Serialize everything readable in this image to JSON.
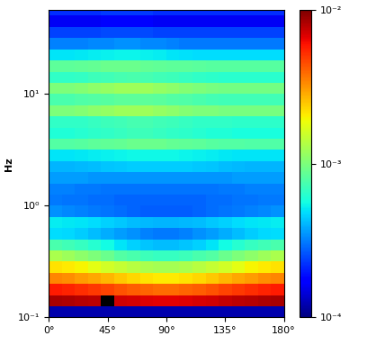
{
  "chart_data": {
    "type": "heatmap",
    "y_label": "Hz",
    "log": "y",
    "x_edges": [
      0,
      10,
      20,
      30,
      40,
      50,
      60,
      70,
      80,
      90,
      100,
      110,
      120,
      130,
      140,
      150,
      160,
      170,
      180
    ],
    "y_edges": [
      0.1,
      0.126,
      0.158,
      0.2,
      0.251,
      0.316,
      0.398,
      0.501,
      0.631,
      0.794,
      1,
      1.26,
      1.58,
      2,
      2.51,
      3.16,
      3.98,
      5.01,
      6.31,
      7.94,
      10,
      12.6,
      15.8,
      20,
      25.1,
      31.6,
      39.8,
      50.1,
      63.1
    ],
    "xlim": [
      0,
      180
    ],
    "ylim": [
      0.1,
      56
    ],
    "xticks": [
      {
        "value": 0,
        "label": "0°"
      },
      {
        "value": 45,
        "label": "45°"
      },
      {
        "value": 90,
        "label": "90°"
      },
      {
        "value": 135,
        "label": "135°"
      },
      {
        "value": 180,
        "label": "180°"
      }
    ],
    "yticks": [
      {
        "value": 0.1,
        "label": "10⁻¹"
      },
      {
        "value": 1,
        "label": "10⁰"
      },
      {
        "value": 10,
        "label": "10¹"
      }
    ],
    "colorbar_range": [
      0.0001,
      0.01
    ],
    "colorbar_ticks": [
      {
        "value": 0.0001,
        "label": "10⁻⁴"
      },
      {
        "value": 0.001,
        "label": "10⁻³"
      },
      {
        "value": 0.01,
        "label": "10⁻²"
      }
    ],
    "cells": [
      [
        0.00012,
        0.00012,
        0.00012,
        0.00012,
        0.00012,
        0.00012,
        0.00012,
        0.00012,
        0.00012,
        0.00012,
        0.00012,
        0.00012,
        0.00012,
        0.00012,
        0.00012,
        0.00012,
        0.00012,
        0.00012
      ],
      [
        0.0085,
        0.0083,
        0.008,
        0.0078,
        0.02,
        0.0072,
        0.007,
        0.0068,
        0.0067,
        0.0067,
        0.0068,
        0.007,
        0.0072,
        0.0075,
        0.0078,
        0.008,
        0.0083,
        0.0085
      ],
      [
        0.0058,
        0.0056,
        0.0053,
        0.005,
        0.0047,
        0.0044,
        0.0042,
        0.004,
        0.0039,
        0.0039,
        0.004,
        0.0042,
        0.0044,
        0.0047,
        0.005,
        0.0053,
        0.0056,
        0.0058
      ],
      [
        0.0034,
        0.0033,
        0.0031,
        0.0029,
        0.0027,
        0.0025,
        0.0023,
        0.0022,
        0.0021,
        0.0021,
        0.0022,
        0.0023,
        0.0025,
        0.0027,
        0.0029,
        0.0031,
        0.0033,
        0.0034
      ],
      [
        0.0022,
        0.0021,
        0.002,
        0.0018,
        0.0016,
        0.0015,
        0.0014,
        0.0013,
        0.00125,
        0.00125,
        0.0013,
        0.0014,
        0.0015,
        0.0016,
        0.0018,
        0.002,
        0.0021,
        0.0022
      ],
      [
        0.0013,
        0.0012,
        0.0011,
        0.001,
        0.0009,
        0.0008,
        0.00075,
        0.0007,
        0.00068,
        0.00068,
        0.0007,
        0.00075,
        0.0008,
        0.0009,
        0.001,
        0.0011,
        0.0012,
        0.0013
      ],
      [
        0.00075,
        0.00072,
        0.00068,
        0.00062,
        0.00056,
        0.0005,
        0.00046,
        0.00043,
        0.00042,
        0.00042,
        0.00043,
        0.00046,
        0.0005,
        0.00056,
        0.00062,
        0.00068,
        0.00072,
        0.00075
      ],
      [
        0.00048,
        0.00047,
        0.00045,
        0.00042,
        0.00039,
        0.00036,
        0.00034,
        0.00032,
        0.00031,
        0.00031,
        0.00032,
        0.00034,
        0.00036,
        0.00039,
        0.00042,
        0.00045,
        0.00047,
        0.00048
      ],
      [
        0.00052,
        0.00051,
        0.0005,
        0.00048,
        0.00046,
        0.00044,
        0.00042,
        0.00041,
        0.0004,
        0.0004,
        0.00041,
        0.00042,
        0.00044,
        0.00046,
        0.00048,
        0.0005,
        0.00051,
        0.00052
      ],
      [
        0.00034,
        0.00033,
        0.00032,
        0.00031,
        0.0003,
        0.00029,
        0.00028,
        0.00027,
        0.00027,
        0.00027,
        0.00027,
        0.00028,
        0.00029,
        0.0003,
        0.00031,
        0.00032,
        0.00033,
        0.00034
      ],
      [
        0.00031,
        0.0003,
        0.0003,
        0.00029,
        0.00029,
        0.00028,
        0.00028,
        0.00028,
        0.00028,
        0.00028,
        0.00028,
        0.00028,
        0.00029,
        0.00029,
        0.0003,
        0.0003,
        0.00031,
        0.00031
      ],
      [
        0.00032,
        0.00032,
        0.00031,
        0.00031,
        0.0003,
        0.0003,
        0.0003,
        0.0003,
        0.0003,
        0.0003,
        0.0003,
        0.0003,
        0.0003,
        0.00031,
        0.00031,
        0.00032,
        0.00032,
        0.00032
      ],
      [
        0.00036,
        0.00036,
        0.00036,
        0.00035,
        0.00035,
        0.00035,
        0.00035,
        0.00035,
        0.00035,
        0.00035,
        0.00035,
        0.00035,
        0.00035,
        0.00035,
        0.00036,
        0.00036,
        0.00036,
        0.00036
      ],
      [
        0.0004,
        0.0004,
        0.00041,
        0.00042,
        0.00043,
        0.00044,
        0.00045,
        0.00045,
        0.00045,
        0.00045,
        0.00045,
        0.00044,
        0.00043,
        0.00042,
        0.00041,
        0.0004,
        0.0004,
        0.0004
      ],
      [
        0.0005,
        0.0005,
        0.00051,
        0.00052,
        0.00053,
        0.00054,
        0.00055,
        0.00055,
        0.00055,
        0.00055,
        0.00054,
        0.00053,
        0.00052,
        0.00051,
        0.0005,
        0.0005,
        0.0005,
        0.0005
      ],
      [
        0.0008,
        0.0008,
        0.00082,
        0.00084,
        0.00086,
        0.00088,
        0.0009,
        0.0009,
        0.0009,
        0.00088,
        0.00086,
        0.00084,
        0.00082,
        0.0008,
        0.0008,
        0.00078,
        0.00078,
        0.00078
      ],
      [
        0.0006,
        0.0006,
        0.00062,
        0.00064,
        0.00066,
        0.00068,
        0.0007,
        0.0007,
        0.00068,
        0.00066,
        0.00064,
        0.00062,
        0.0006,
        0.0006,
        0.00058,
        0.00058,
        0.00058,
        0.00058
      ],
      [
        0.00065,
        0.00065,
        0.00066,
        0.00068,
        0.0007,
        0.00072,
        0.00074,
        0.00074,
        0.00072,
        0.0007,
        0.00068,
        0.00066,
        0.00065,
        0.00065,
        0.00064,
        0.00064,
        0.00064,
        0.00064
      ],
      [
        0.001,
        0.001,
        0.00105,
        0.0011,
        0.00115,
        0.0012,
        0.0012,
        0.0012,
        0.00115,
        0.0011,
        0.00105,
        0.001,
        0.001,
        0.00098,
        0.00098,
        0.00098,
        0.00098,
        0.00098
      ],
      [
        0.00075,
        0.00075,
        0.00078,
        0.0008,
        0.00082,
        0.00084,
        0.00085,
        0.00085,
        0.00083,
        0.0008,
        0.00078,
        0.00075,
        0.00073,
        0.00072,
        0.00072,
        0.00072,
        0.00072,
        0.00072
      ],
      [
        0.001,
        0.001,
        0.00105,
        0.0011,
        0.00115,
        0.0012,
        0.0012,
        0.0012,
        0.00115,
        0.0011,
        0.00105,
        0.001,
        0.00098,
        0.00096,
        0.00096,
        0.00096,
        0.00096,
        0.00096
      ],
      [
        0.00065,
        0.00065,
        0.00067,
        0.0007,
        0.00072,
        0.00074,
        0.00075,
        0.00074,
        0.00072,
        0.0007,
        0.00068,
        0.00066,
        0.00064,
        0.00063,
        0.00063,
        0.00063,
        0.00063,
        0.00063
      ],
      [
        0.00085,
        0.00085,
        0.00086,
        0.00088,
        0.0009,
        0.0009,
        0.0009,
        0.00088,
        0.00086,
        0.00085,
        0.00084,
        0.00083,
        0.00082,
        0.00082,
        0.00082,
        0.00082,
        0.00082,
        0.00082
      ],
      [
        0.0005,
        0.0005,
        0.00051,
        0.00052,
        0.00053,
        0.00054,
        0.00054,
        0.00053,
        0.00052,
        0.0005,
        0.00049,
        0.00048,
        0.00048,
        0.00048,
        0.00048,
        0.00048,
        0.00048,
        0.00048
      ],
      [
        0.00032,
        0.00032,
        0.00032,
        0.00033,
        0.00033,
        0.00034,
        0.00034,
        0.00033,
        0.00033,
        0.00032,
        0.00031,
        0.00031,
        0.00031,
        0.00031,
        0.00031,
        0.00031,
        0.00031,
        0.00031
      ],
      [
        0.00024,
        0.00024,
        0.00024,
        0.00024,
        0.00025,
        0.00025,
        0.00025,
        0.00025,
        0.00024,
        0.00024,
        0.00024,
        0.00024,
        0.00024,
        0.00024,
        0.00024,
        0.00024,
        0.00024,
        0.00024
      ],
      [
        0.00016,
        0.00016,
        0.00016,
        0.00016,
        0.00017,
        0.00017,
        0.00017,
        0.00017,
        0.00016,
        0.00016,
        0.00016,
        0.00016,
        0.00016,
        0.00016,
        0.00016,
        0.00016,
        0.00016,
        0.00016
      ],
      [
        0.00022,
        0.00022,
        0.00022,
        0.00022,
        0.00023,
        0.00023,
        0.00023,
        0.00023,
        0.00022,
        0.00022,
        0.00022,
        0.00022,
        0.00022,
        0.00022,
        0.00022,
        0.00022,
        0.00022,
        0.00022
      ]
    ]
  }
}
